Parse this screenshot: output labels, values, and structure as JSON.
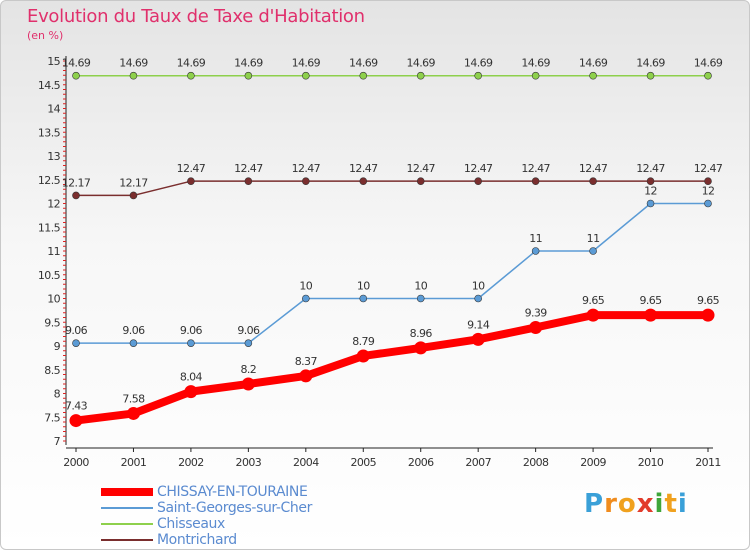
{
  "title": "Evolution du Taux de Taxe d'Habitation",
  "subtitle": "(en %)",
  "brand": {
    "letters": [
      "P",
      "r",
      "o",
      "x",
      "i",
      "t",
      "i"
    ],
    "colors": [
      "#3aa0d8",
      "#f08c1e",
      "#f0a11e",
      "#e23c2c",
      "#3fa63a",
      "#f0a11e",
      "#3aa0d8"
    ]
  },
  "chart_data": {
    "type": "line",
    "title": "Evolution du Taux de Taxe d'Habitation",
    "ylabel": "(en %)",
    "x": [
      "2000",
      "2001",
      "2002",
      "2003",
      "2004",
      "2005",
      "2006",
      "2007",
      "2008",
      "2009",
      "2010",
      "2011"
    ],
    "ylim": [
      7,
      15
    ],
    "yticks": [
      "7",
      "7.5",
      "8",
      "8.5",
      "9",
      "9.5",
      "10",
      "10.5",
      "11",
      "11.5",
      "12",
      "12.5",
      "13",
      "13.5",
      "14",
      "14.5",
      "15"
    ],
    "series": [
      {
        "name": "CHISSAY-EN-TOURAINE",
        "color": "#ff0000",
        "values": [
          7.43,
          7.58,
          8.04,
          8.2,
          8.37,
          8.79,
          8.96,
          9.14,
          9.39,
          9.65,
          9.65,
          9.65
        ],
        "labels": [
          "7.43",
          "7.58",
          "8.04",
          "8.2",
          "8.37",
          "8.79",
          "8.96",
          "9.14",
          "9.39",
          "9.65",
          "9.65",
          "9.65"
        ]
      },
      {
        "name": "Saint-Georges-sur-Cher",
        "color": "#5b9bd5",
        "values": [
          9.06,
          9.06,
          9.06,
          9.06,
          10,
          10,
          10,
          10,
          11,
          11,
          12,
          12
        ],
        "labels": [
          "9.06",
          "9.06",
          "9.06",
          "9.06",
          "10",
          "10",
          "10",
          "10",
          "11",
          "11",
          "12",
          "12"
        ]
      },
      {
        "name": "Chisseaux",
        "color": "#8ed04c",
        "values": [
          14.69,
          14.69,
          14.69,
          14.69,
          14.69,
          14.69,
          14.69,
          14.69,
          14.69,
          14.69,
          14.69,
          14.69
        ],
        "labels": [
          "14.69",
          "14.69",
          "14.69",
          "14.69",
          "14.69",
          "14.69",
          "14.69",
          "14.69",
          "14.69",
          "14.69",
          "14.69",
          "14.69"
        ]
      },
      {
        "name": "Montrichard",
        "color": "#7a2e2e",
        "values": [
          12.17,
          12.17,
          12.47,
          12.47,
          12.47,
          12.47,
          12.47,
          12.47,
          12.47,
          12.47,
          12.47,
          12.47
        ],
        "labels": [
          "12.17",
          "12.17",
          "12.47",
          "12.47",
          "12.47",
          "12.47",
          "12.47",
          "12.47",
          "12.47",
          "12.47",
          "12.47",
          "12.47"
        ]
      }
    ]
  }
}
